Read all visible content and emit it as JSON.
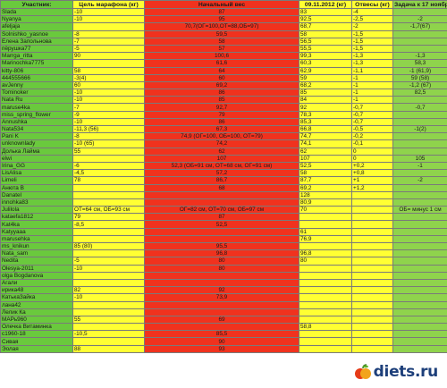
{
  "headers": [
    "Участник:",
    "Цель марафона (кг)",
    "Начальный вес",
    "09.11.2012 (кг)",
    "Отвесы (кг)",
    "Задача к 17 ноября (кг)"
  ],
  "rows": [
    [
      "Slada",
      "-10",
      "87",
      "83",
      "-4",
      ""
    ],
    [
      "Nyanya",
      "-10",
      "95",
      "92,5",
      "-2,5",
      "-2"
    ],
    [
      "afeljaja",
      "",
      "70,7(ОГ=100,ОТ=88,ОБ=97)",
      "68,7",
      "-2",
      "-1,7(67)"
    ],
    [
      "Solnishko_yasnoe",
      "-8",
      "59,5",
      "58",
      "-1,5",
      ""
    ],
    [
      "Елена Запольнова",
      "-7",
      "58",
      "56,5",
      "-1,5",
      ""
    ],
    [
      "пёрушка77",
      "-5",
      "57",
      "55,5",
      "-1,5",
      ""
    ],
    [
      "Marrga_ritta",
      "90",
      "100,6",
      "99,3",
      "-1,3",
      "-1,3"
    ],
    [
      "Marinochka7775",
      "",
      "61,6",
      "60,3",
      "-1,3",
      "58,3"
    ],
    [
      "kitty-806",
      "58",
      "64",
      "62,9",
      "-1,1",
      "-1 (61,9)"
    ],
    [
      "444555666",
      "-3(4)",
      "60",
      "59",
      "-1",
      "59 (58)"
    ],
    [
      "avJenny",
      "60",
      "69,2",
      "68,2",
      "-1",
      "-1,2 (67)"
    ],
    [
      "Tominoker",
      "-10",
      "86",
      "85",
      "-1",
      "82,5"
    ],
    [
      "Nata Ru",
      "-10",
      "85",
      "84",
      "-1",
      ""
    ],
    [
      "maruse4ka",
      "-7",
      "92,7",
      "92",
      "-0,7",
      "-0,7"
    ],
    [
      "miss_spring_flower",
      "-9",
      "79",
      "78,3",
      "-0,7",
      ""
    ],
    [
      "Annushka",
      "-10",
      "86",
      "85,3",
      "-0,7",
      ""
    ],
    [
      "Nata534",
      "-11,3 (56)",
      "67,3",
      "66,8",
      "-0,5",
      "-1(2)"
    ],
    [
      "Pani K",
      "-8",
      "74,9 (ОГ=100, ОБ=100, ОТ=79)",
      "74,7",
      "-0,2",
      ""
    ],
    [
      "unknownlady",
      "-10 (65)",
      "74,2",
      "74,1",
      "-0,1",
      ""
    ],
    [
      "Долька Лайма",
      "55",
      "62",
      "62",
      "0",
      ""
    ],
    [
      "elwi",
      "",
      "107",
      "107",
      "0",
      "105"
    ],
    [
      "Irina_GG",
      "-6",
      "52,3 (ОБ=91 см, ОТ=68 см, ОГ=91 см)",
      "52,5",
      "+0,2",
      "-1"
    ],
    [
      "LisAlisa",
      "-4,5",
      "57,2",
      "58",
      "+0,8",
      ""
    ],
    [
      "Limeli",
      "78",
      "86,7",
      "87,7",
      "+1",
      "-2"
    ],
    [
      "Анюта В",
      "",
      "68",
      "69,2",
      "+1,2",
      ""
    ],
    [
      "Danatel",
      "",
      "",
      "128",
      "",
      ""
    ],
    [
      "innohka83",
      "",
      "",
      "80,9",
      "",
      ""
    ],
    [
      "Julilola",
      "ОТ=64 см, ОБ=93 см",
      "ОГ=82 см, ОТ=70 см, ОБ=97 см",
      "70",
      "",
      "ОБ= минус 1 см"
    ],
    [
      "kataefa1812",
      "79",
      "87",
      "",
      "",
      ""
    ],
    [
      "Kat4ka",
      "-8,5",
      "52,5",
      "",
      "",
      ""
    ],
    [
      "Katyyaaa",
      "",
      "",
      "61",
      "",
      ""
    ],
    [
      "marusehka",
      "",
      "",
      "76,9",
      "",
      ""
    ],
    [
      "ms_knikun",
      "85 (80)",
      "95,5",
      "",
      "",
      ""
    ],
    [
      "Nata_sam",
      "",
      "96,8",
      "96,8",
      "",
      ""
    ],
    [
      "Nedita",
      "-5",
      "80",
      "80",
      "",
      ""
    ],
    [
      "Olesya-2011",
      "-10",
      "80",
      "",
      "",
      ""
    ],
    [
      "olga Bogdanova",
      "",
      "",
      "",
      "",
      ""
    ],
    [
      "Агали",
      "",
      "",
      "",
      "",
      ""
    ],
    [
      "ирика48",
      "82",
      "92",
      "",
      "",
      ""
    ],
    [
      "КатькаЗайка",
      "-10",
      "73,9",
      "",
      "",
      ""
    ],
    [
      "лана42",
      "",
      "",
      "",
      "",
      ""
    ],
    [
      "Лелик Ка",
      "",
      "",
      "",
      "",
      ""
    ],
    [
      "МАРь960",
      "55",
      "69",
      "",
      "",
      ""
    ],
    [
      "Олечка Витаминка",
      "",
      "",
      "58,8",
      "",
      ""
    ],
    [
      "с1960-18",
      "-10,5",
      "85,5",
      "",
      "",
      ""
    ],
    [
      "Сивая",
      "",
      "90",
      "",
      "",
      ""
    ],
    [
      "Эолая",
      "88",
      "93",
      "",
      "",
      ""
    ]
  ],
  "colors": {
    "green": "#6ac93d",
    "yellow": "#ffff33",
    "red": "#f0321e"
  },
  "logo": {
    "text": "diets.ru",
    "icon": "apple-icon"
  }
}
